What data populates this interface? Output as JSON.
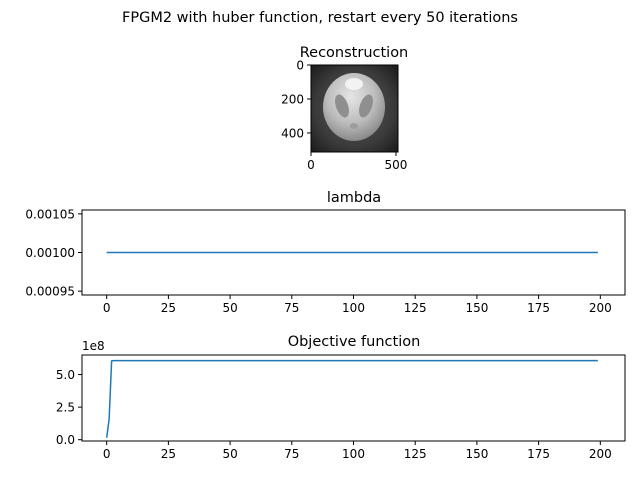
{
  "figure": {
    "suptitle": "FPGM2 with huber function, restart every 50 iterations"
  },
  "colors": {
    "line": "#1f77b4",
    "axes": "#000000",
    "background": "#ffffff"
  },
  "chart_data": [
    {
      "type": "image",
      "title": "Reconstruction",
      "xlim": [
        0,
        512
      ],
      "ylim": [
        512,
        0
      ],
      "xticks": [
        0,
        500
      ],
      "xtick_labels": [
        "0",
        "500"
      ],
      "yticks": [
        0,
        200,
        400
      ],
      "ytick_labels": [
        "0",
        "200",
        "400"
      ],
      "grid": false
    },
    {
      "type": "line",
      "title": "lambda",
      "xlim": [
        -10,
        210
      ],
      "ylim": [
        0.000945,
        0.001055
      ],
      "xticks": [
        0,
        25,
        50,
        75,
        100,
        125,
        150,
        175,
        200
      ],
      "xtick_labels": [
        "0",
        "25",
        "50",
        "75",
        "100",
        "125",
        "150",
        "175",
        "200"
      ],
      "yticks": [
        0.00095,
        0.001,
        0.00105
      ],
      "ytick_labels": [
        "0.00095",
        "0.00100",
        "0.00105"
      ],
      "grid": false,
      "series": [
        {
          "x": [
            0,
            199
          ],
          "y": [
            0.001,
            0.001
          ]
        }
      ]
    },
    {
      "type": "line",
      "title": "Objective function",
      "xlim": [
        -10,
        210
      ],
      "ylim": [
        -0.1,
        6.5
      ],
      "y_scale_label": "1e8",
      "xticks": [
        0,
        25,
        50,
        75,
        100,
        125,
        150,
        175,
        200
      ],
      "xtick_labels": [
        "0",
        "25",
        "50",
        "75",
        "100",
        "125",
        "150",
        "175",
        "200"
      ],
      "yticks": [
        0,
        2.5,
        5.0
      ],
      "ytick_labels": [
        "0.0",
        "2.5",
        "5.0"
      ],
      "grid": false,
      "series": [
        {
          "x": [
            0,
            1,
            2,
            3,
            199
          ],
          "y": [
            0.15,
            1.6,
            6.05,
            6.07,
            6.07
          ]
        }
      ]
    }
  ]
}
